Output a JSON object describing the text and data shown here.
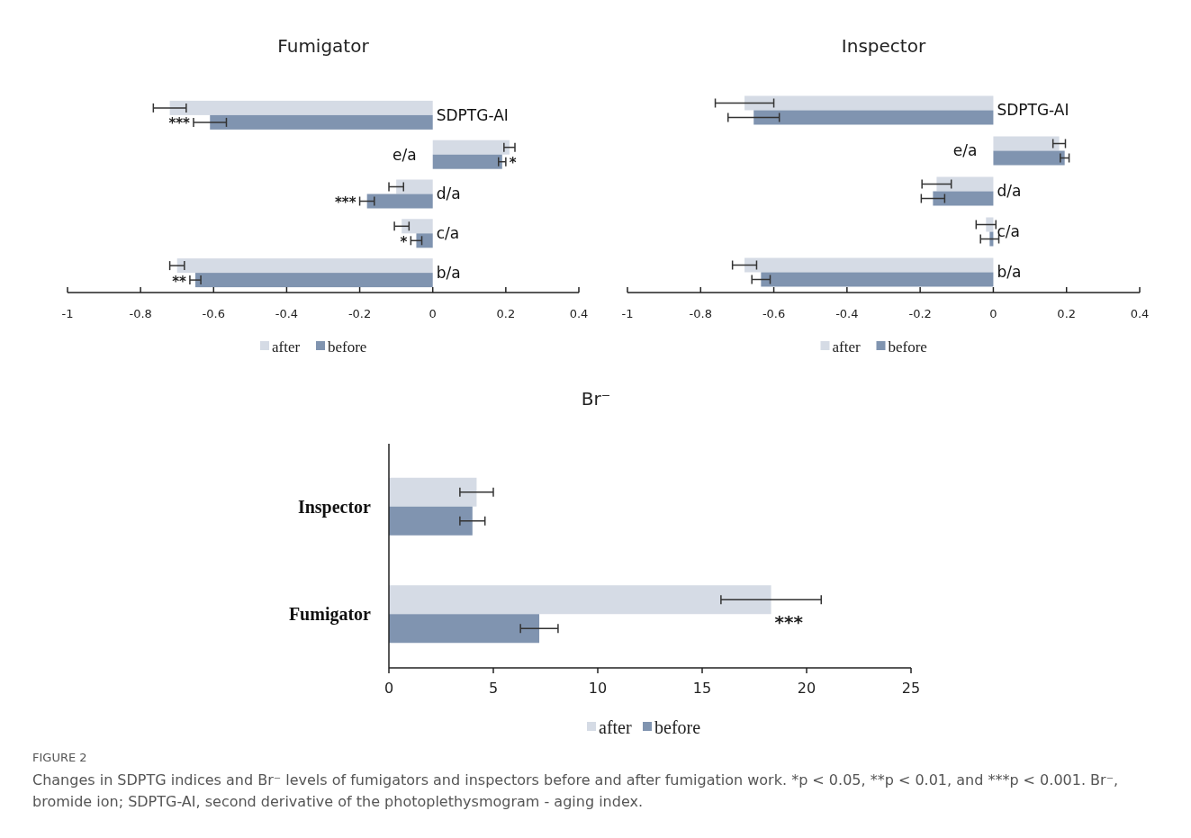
{
  "chart_data": [
    {
      "type": "bar",
      "orientation": "horizontal",
      "title": "Fumigator",
      "categories": [
        "SDPTG-AI",
        "e/a",
        "d/a",
        "c/a",
        "b/a"
      ],
      "xlim": [
        -1,
        0.4
      ],
      "xticks": [
        -1,
        -0.8,
        -0.6,
        -0.4,
        -0.2,
        0,
        0.2,
        0.4
      ],
      "grid": false,
      "legend": "bottom",
      "series": [
        {
          "name": "after",
          "color": "#d5dbe5",
          "values": [
            -0.72,
            0.21,
            -0.1,
            -0.085,
            -0.7
          ],
          "errors": [
            0.045,
            0.015,
            0.02,
            0.02,
            0.02
          ]
        },
        {
          "name": "before",
          "color": "#8094b0",
          "values": [
            -0.61,
            0.19,
            -0.18,
            -0.045,
            -0.65
          ],
          "errors": [
            0.045,
            0.01,
            0.02,
            0.015,
            0.015
          ]
        }
      ],
      "annotations": [
        {
          "text": "***",
          "x": -0.655,
          "y": "SDPTG-AI"
        },
        {
          "text": "*",
          "x": 0.2,
          "y": "e/a"
        },
        {
          "text": "***",
          "x": -0.2,
          "y": "d/a"
        },
        {
          "text": "*",
          "x": -0.06,
          "y": "c/a"
        },
        {
          "text": "**",
          "x": -0.665,
          "y": "b/a"
        }
      ]
    },
    {
      "type": "bar",
      "orientation": "horizontal",
      "title": "Inspector",
      "categories": [
        "SDPTG-AI",
        "e/a",
        "d/a",
        "c/a",
        "b/a"
      ],
      "xlim": [
        -1,
        0.4
      ],
      "xticks": [
        -1,
        -0.8,
        -0.6,
        -0.4,
        -0.2,
        0,
        0.2,
        0.4
      ],
      "grid": false,
      "legend": "bottom",
      "series": [
        {
          "name": "after",
          "color": "#d5dbe5",
          "values": [
            -0.68,
            0.18,
            -0.155,
            -0.02,
            -0.68
          ],
          "errors": [
            0.08,
            0.017,
            0.04,
            0.027,
            0.033
          ]
        },
        {
          "name": "before",
          "color": "#8094b0",
          "values": [
            -0.655,
            0.195,
            -0.165,
            -0.01,
            -0.635
          ],
          "errors": [
            0.07,
            0.012,
            0.032,
            0.025,
            0.025
          ]
        }
      ]
    },
    {
      "type": "bar",
      "orientation": "horizontal",
      "title": "Br⁻",
      "categories": [
        "Inspector",
        "Fumigator"
      ],
      "xlim": [
        0,
        25
      ],
      "xticks": [
        0,
        5,
        10,
        15,
        20,
        25
      ],
      "grid": false,
      "legend": "bottom",
      "series": [
        {
          "name": "after",
          "color": "#d5dbe5",
          "values": [
            4.2,
            18.3
          ],
          "errors": [
            0.8,
            2.4
          ]
        },
        {
          "name": "before",
          "color": "#8094b0",
          "values": [
            4.0,
            7.2
          ],
          "errors": [
            0.6,
            0.9
          ]
        }
      ],
      "annotations": [
        {
          "text": "***",
          "x": 18.3,
          "y": "Fumigator"
        },
        "FIGURE 2",
        "Changes in SDPTG indices and Br⁻ levels of fumigators and inspectors before and after fumigation work. *p < 0.05, **p < 0.01, and ***p < 0.001. Br⁻, bromide ion; SDPTG-AI, second derivative of the photoplethysmogram - aging index."
      ]
    }
  ]
}
